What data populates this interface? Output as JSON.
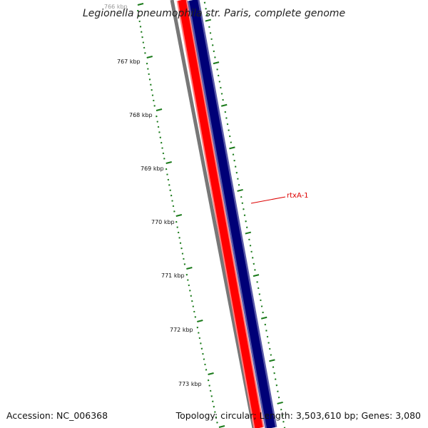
{
  "title": "Legionella pneumophila str. Paris, complete genome",
  "footer": {
    "accession": "Accession: NC_006368",
    "summary": "Topology: circular; Length: 3,503,610 bp; Genes: 3,080"
  },
  "tick_labels": [
    "766 kbp",
    "767 kbp",
    "768 kbp",
    "769 kbp",
    "770 kbp",
    "771 kbp",
    "772 kbp",
    "773 kbp"
  ],
  "gene_label": {
    "text": "rtxA-1",
    "color": "#dd0000"
  },
  "colors": {
    "backbone": "#777777",
    "forward_strand": "#ff0000",
    "reverse_strand": "#000077",
    "ticks": "#1a7a1a",
    "gene_label": "#dd0000"
  }
}
